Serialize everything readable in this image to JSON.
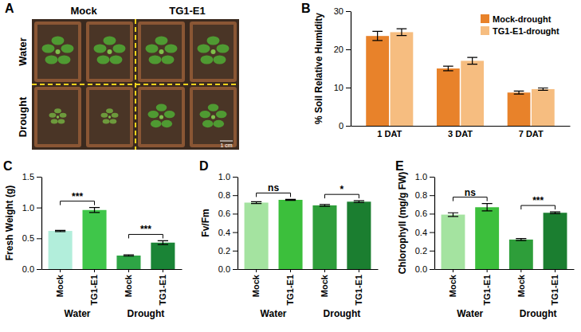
{
  "photo_panel": {
    "title": "A",
    "columns": [
      "Mock",
      "TG1-E1"
    ],
    "rows": [
      "Water",
      "Drought"
    ],
    "scale_bar": "1 cm"
  },
  "chart_data": [
    {
      "type": "bar",
      "title": "B",
      "ylabel": "% Soil Relative Humidity",
      "categories": [
        "1 DAT",
        "3 DAT",
        "7 DAT"
      ],
      "series": [
        {
          "name": "Mock-drought",
          "color": "#e8822a",
          "values": [
            23.5,
            15.0,
            8.7
          ],
          "errors": [
            1.2,
            0.6,
            0.4
          ]
        },
        {
          "name": "TG1-E1-drought",
          "color": "#f6bd80",
          "values": [
            24.5,
            17.0,
            9.6
          ],
          "errors": [
            0.9,
            0.9,
            0.3
          ]
        }
      ],
      "ylim": [
        0,
        30
      ],
      "yticks": [
        0,
        10,
        20,
        30
      ],
      "legend": "top-right"
    },
    {
      "type": "bar",
      "title": "C",
      "ylabel": "Fresh Weight (g)",
      "categories": [
        "Mock",
        "TG1-E1",
        "Mock",
        "TG1-E1"
      ],
      "groups": [
        "Water",
        "Drought"
      ],
      "values": [
        0.62,
        0.96,
        0.22,
        0.43
      ],
      "errors": [
        0.01,
        0.04,
        0.01,
        0.03
      ],
      "colors": [
        "#b2eedb",
        "#3fc64a",
        "#2ea545",
        "#1a8436"
      ],
      "ylim": [
        0,
        1.5
      ],
      "yticks": [
        {
          "value": 0,
          "label": "0.0"
        },
        {
          "value": 0.5,
          "label": "0.5"
        },
        {
          "value": 1,
          "label": "1.0"
        },
        {
          "value": 1.5,
          "label": "1.5"
        }
      ],
      "comparisons": [
        {
          "bars": [
            0,
            1
          ],
          "text": "***"
        },
        {
          "bars": [
            2,
            3
          ],
          "text": "***"
        }
      ]
    },
    {
      "type": "bar",
      "title": "D",
      "ylabel": "Fv/Fm",
      "categories": [
        "Mock",
        "TG1-E1",
        "Mock",
        "TG1-E1"
      ],
      "groups": [
        "Water",
        "Drought"
      ],
      "values": [
        0.72,
        0.75,
        0.69,
        0.73
      ],
      "errors": [
        0.01,
        0.005,
        0.01,
        0.01
      ],
      "colors": [
        "#a4e3a0",
        "#3cbf3c",
        "#2e9e3a",
        "#1b7e30"
      ],
      "ylim": [
        0,
        1
      ],
      "yticks": [
        {
          "value": 0,
          "label": "0.0"
        },
        {
          "value": 0.2,
          "label": "0.2"
        },
        {
          "value": 0.4,
          "label": "0.4"
        },
        {
          "value": 0.6,
          "label": "0.6"
        },
        {
          "value": 0.8,
          "label": "0.8"
        },
        {
          "value": 1,
          "label": "1.0"
        }
      ],
      "comparisons": [
        {
          "bars": [
            0,
            1
          ],
          "text": "ns"
        },
        {
          "bars": [
            2,
            3
          ],
          "text": "*"
        }
      ]
    },
    {
      "type": "bar",
      "title": "E",
      "ylabel": "Chlorophyll (mg/g FW)",
      "categories": [
        "Mock",
        "TG1-E1",
        "Mock",
        "TG1-E1"
      ],
      "groups": [
        "Water",
        "Drought"
      ],
      "values": [
        0.59,
        0.67,
        0.32,
        0.61
      ],
      "errors": [
        0.02,
        0.04,
        0.01,
        0.01
      ],
      "colors": [
        "#a4e3a0",
        "#3cbf3c",
        "#2e9e3a",
        "#1b7e30"
      ],
      "ylim": [
        0,
        1
      ],
      "yticks": [
        {
          "value": 0,
          "label": "0.0"
        },
        {
          "value": 0.2,
          "label": "0.2"
        },
        {
          "value": 0.4,
          "label": "0.4"
        },
        {
          "value": 0.6,
          "label": "0.6"
        },
        {
          "value": 0.8,
          "label": "0.8"
        },
        {
          "value": 1,
          "label": "1.0"
        }
      ],
      "comparisons": [
        {
          "bars": [
            0,
            1
          ],
          "text": "ns"
        },
        {
          "bars": [
            2,
            3
          ],
          "text": "***"
        }
      ]
    }
  ]
}
